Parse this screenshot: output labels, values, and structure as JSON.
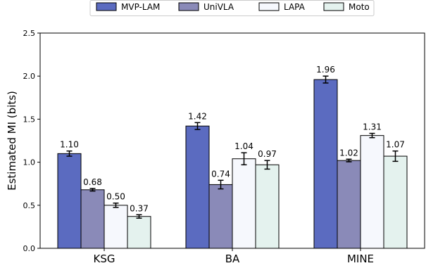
{
  "chart_data": {
    "type": "bar",
    "title": "",
    "xlabel": "",
    "ylabel": "Estimated MI (bits)",
    "ylim": [
      0,
      2.5
    ],
    "yticks": [
      "0.0",
      "0.5",
      "1.0",
      "1.5",
      "2.0",
      "2.5"
    ],
    "grid": false,
    "legend_position": "top-center",
    "categories": [
      "KSG",
      "BA",
      "MINE"
    ],
    "series": [
      {
        "name": "MVP-LAM",
        "color": "#5b6bc0",
        "values": [
          1.1,
          1.42,
          1.96
        ],
        "labels": [
          "1.10",
          "1.42",
          "1.96"
        ],
        "errors": [
          0.03,
          0.04,
          0.04
        ]
      },
      {
        "name": "UniVLA",
        "color": "#8a8ab8",
        "values": [
          0.68,
          0.74,
          1.02
        ],
        "labels": [
          "0.68",
          "0.74",
          "1.02"
        ],
        "errors": [
          0.015,
          0.05,
          0.015
        ]
      },
      {
        "name": "LAPA",
        "color": "#f6f8fd",
        "values": [
          0.5,
          1.04,
          1.31
        ],
        "labels": [
          "0.50",
          "1.04",
          "1.31"
        ],
        "errors": [
          0.025,
          0.07,
          0.025
        ]
      },
      {
        "name": "Moto",
        "color": "#e4f2ee",
        "values": [
          0.37,
          0.97,
          1.07
        ],
        "labels": [
          "0.37",
          "0.97",
          "1.07"
        ],
        "errors": [
          0.02,
          0.05,
          0.06
        ]
      }
    ]
  }
}
